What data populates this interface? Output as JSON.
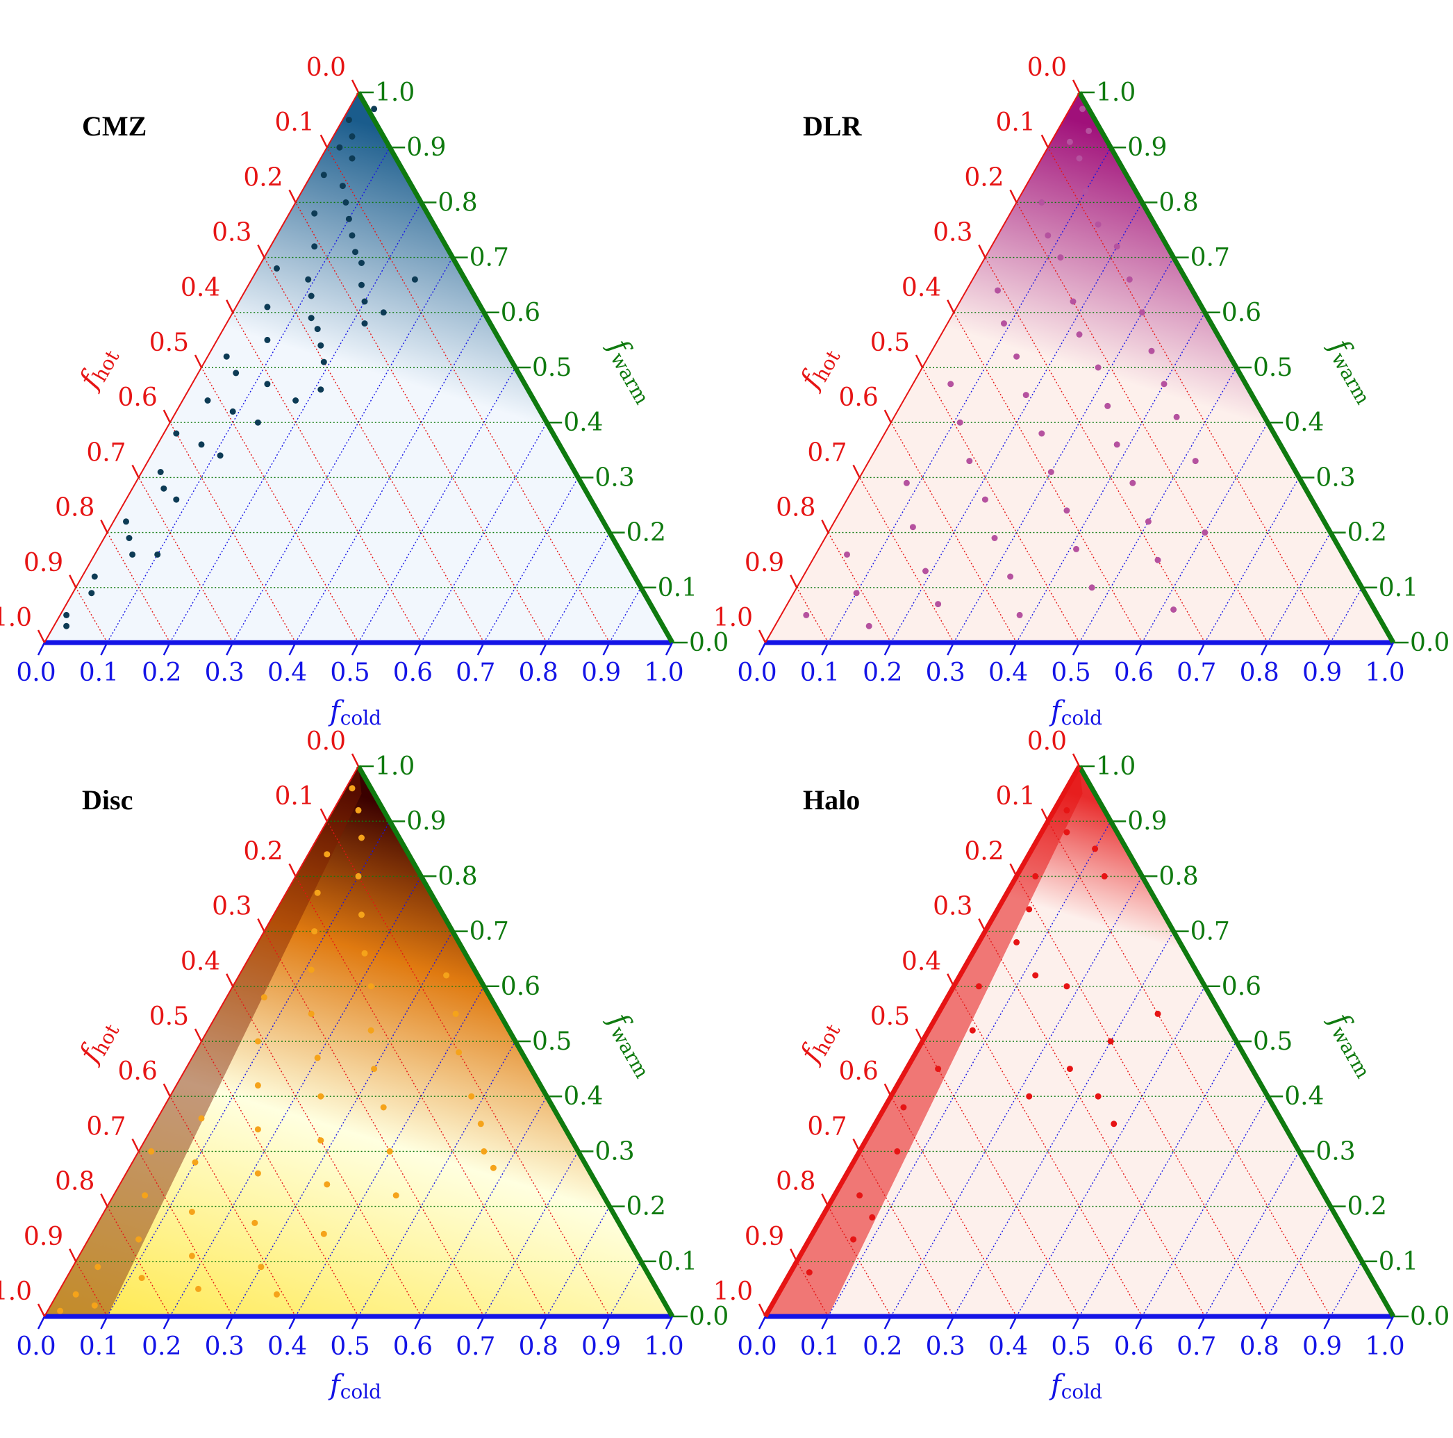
{
  "figure": {
    "ticks": [
      "0.0",
      "0.1",
      "0.2",
      "0.3",
      "0.4",
      "0.5",
      "0.6",
      "0.7",
      "0.8",
      "0.9",
      "1.0"
    ],
    "axis_colors": {
      "cold": "#1414e6",
      "warm": "#0f7a0f",
      "hot": "#e61414"
    },
    "axes": {
      "cold": {
        "symbol": "f",
        "subscript": "cold"
      },
      "warm": {
        "symbol": "f",
        "subscript": "warm"
      },
      "hot": {
        "symbol": "f",
        "subscript": "hot"
      }
    }
  },
  "chart_data": [
    {
      "type": "scatter",
      "title": "CMZ",
      "coordinates": "ternary (f_cold, f_warm, f_hot)",
      "density_colors": [
        "#f2f7fd",
        "#1a5c8c"
      ],
      "point_color": "#0d3b55",
      "density": "strongest near f_warm ≈ 0.9–1.0 and along the f_cold = 0 edge",
      "points": [
        [
          0.03,
          0.92
        ],
        [
          0.05,
          0.88
        ],
        [
          0.02,
          0.85
        ],
        [
          0.06,
          0.83
        ],
        [
          0.08,
          0.8
        ],
        [
          0.04,
          0.78
        ],
        [
          0.1,
          0.77
        ],
        [
          0.12,
          0.74
        ],
        [
          0.07,
          0.72
        ],
        [
          0.14,
          0.71
        ],
        [
          0.16,
          0.69
        ],
        [
          0.03,
          0.68
        ],
        [
          0.09,
          0.66
        ],
        [
          0.18,
          0.65
        ],
        [
          0.11,
          0.63
        ],
        [
          0.2,
          0.62
        ],
        [
          0.05,
          0.61
        ],
        [
          0.13,
          0.59
        ],
        [
          0.15,
          0.57
        ],
        [
          0.22,
          0.58
        ],
        [
          0.08,
          0.55
        ],
        [
          0.17,
          0.54
        ],
        [
          0.03,
          0.52
        ],
        [
          0.19,
          0.51
        ],
        [
          0.06,
          0.49
        ],
        [
          0.12,
          0.47
        ],
        [
          0.21,
          0.46
        ],
        [
          0.04,
          0.44
        ],
        [
          0.09,
          0.42
        ],
        [
          0.14,
          0.4
        ],
        [
          0.02,
          0.38
        ],
        [
          0.07,
          0.36
        ],
        [
          0.11,
          0.34
        ],
        [
          0.03,
          0.31
        ],
        [
          0.05,
          0.28
        ],
        [
          0.08,
          0.26
        ],
        [
          0.02,
          0.22
        ],
        [
          0.04,
          0.19
        ],
        [
          0.06,
          0.16
        ],
        [
          0.02,
          0.12
        ],
        [
          0.03,
          0.09
        ],
        [
          0.01,
          0.05
        ],
        [
          0.02,
          0.03
        ],
        [
          0.1,
          0.16
        ],
        [
          0.18,
          0.44
        ],
        [
          0.24,
          0.6
        ],
        [
          0.26,
          0.66
        ],
        [
          0.01,
          0.95
        ],
        [
          0.04,
          0.97
        ],
        [
          0.02,
          0.9
        ]
      ]
    },
    {
      "type": "scatter",
      "title": "DLR",
      "coordinates": "ternary (f_cold, f_warm, f_hot)",
      "density_colors": [
        "#fdf0ec",
        "#a0107a"
      ],
      "point_color": "#b5529f",
      "density": "strongest near f_warm ≈ 0.85–0.95, spread across the interior",
      "points": [
        [
          0.03,
          0.91
        ],
        [
          0.06,
          0.88
        ],
        [
          0.1,
          0.82
        ],
        [
          0.04,
          0.8
        ],
        [
          0.15,
          0.76
        ],
        [
          0.08,
          0.74
        ],
        [
          0.2,
          0.72
        ],
        [
          0.12,
          0.7
        ],
        [
          0.25,
          0.66
        ],
        [
          0.05,
          0.64
        ],
        [
          0.18,
          0.62
        ],
        [
          0.3,
          0.6
        ],
        [
          0.09,
          0.58
        ],
        [
          0.22,
          0.56
        ],
        [
          0.35,
          0.53
        ],
        [
          0.14,
          0.52
        ],
        [
          0.28,
          0.5
        ],
        [
          0.4,
          0.47
        ],
        [
          0.06,
          0.47
        ],
        [
          0.19,
          0.45
        ],
        [
          0.33,
          0.43
        ],
        [
          0.45,
          0.41
        ],
        [
          0.11,
          0.4
        ],
        [
          0.25,
          0.38
        ],
        [
          0.38,
          0.36
        ],
        [
          0.52,
          0.33
        ],
        [
          0.16,
          0.33
        ],
        [
          0.3,
          0.31
        ],
        [
          0.44,
          0.29
        ],
        [
          0.08,
          0.29
        ],
        [
          0.22,
          0.26
        ],
        [
          0.36,
          0.24
        ],
        [
          0.5,
          0.22
        ],
        [
          0.6,
          0.2
        ],
        [
          0.13,
          0.21
        ],
        [
          0.27,
          0.19
        ],
        [
          0.41,
          0.17
        ],
        [
          0.05,
          0.16
        ],
        [
          0.19,
          0.13
        ],
        [
          0.33,
          0.12
        ],
        [
          0.47,
          0.1
        ],
        [
          0.1,
          0.09
        ],
        [
          0.24,
          0.07
        ],
        [
          0.38,
          0.05
        ],
        [
          0.04,
          0.05
        ],
        [
          0.15,
          0.03
        ],
        [
          0.62,
          0.06
        ],
        [
          0.55,
          0.15
        ],
        [
          0.02,
          0.97
        ],
        [
          0.05,
          0.93
        ]
      ]
    },
    {
      "type": "scatter",
      "title": "Disc",
      "coordinates": "ternary (f_cold, f_warm, f_hot)",
      "density_colors": [
        "#ffffe0",
        "#ffe84a",
        "#e07a10",
        "#3a0000"
      ],
      "point_color": "#f5a31a",
      "density": "strongest near f_warm ≈ 0.9 and along the f_cold ≈ 0.05 edge for f_warm < 0.3",
      "points": [
        [
          0.04,
          0.92
        ],
        [
          0.07,
          0.87
        ],
        [
          0.03,
          0.84
        ],
        [
          0.1,
          0.8
        ],
        [
          0.05,
          0.77
        ],
        [
          0.14,
          0.73
        ],
        [
          0.08,
          0.7
        ],
        [
          0.18,
          0.66
        ],
        [
          0.11,
          0.63
        ],
        [
          0.22,
          0.6
        ],
        [
          0.06,
          0.58
        ],
        [
          0.15,
          0.55
        ],
        [
          0.26,
          0.52
        ],
        [
          0.09,
          0.5
        ],
        [
          0.2,
          0.47
        ],
        [
          0.3,
          0.45
        ],
        [
          0.13,
          0.42
        ],
        [
          0.24,
          0.4
        ],
        [
          0.35,
          0.38
        ],
        [
          0.07,
          0.36
        ],
        [
          0.17,
          0.34
        ],
        [
          0.28,
          0.32
        ],
        [
          0.4,
          0.3
        ],
        [
          0.1,
          0.28
        ],
        [
          0.21,
          0.26
        ],
        [
          0.33,
          0.24
        ],
        [
          0.45,
          0.22
        ],
        [
          0.05,
          0.22
        ],
        [
          0.14,
          0.19
        ],
        [
          0.25,
          0.17
        ],
        [
          0.37,
          0.15
        ],
        [
          0.08,
          0.14
        ],
        [
          0.18,
          0.11
        ],
        [
          0.3,
          0.09
        ],
        [
          0.04,
          0.09
        ],
        [
          0.12,
          0.07
        ],
        [
          0.22,
          0.05
        ],
        [
          0.03,
          0.04
        ],
        [
          0.07,
          0.02
        ],
        [
          0.02,
          0.01
        ],
        [
          0.48,
          0.4
        ],
        [
          0.52,
          0.35
        ],
        [
          0.55,
          0.3
        ],
        [
          0.42,
          0.48
        ],
        [
          0.38,
          0.55
        ],
        [
          0.33,
          0.62
        ],
        [
          0.58,
          0.27
        ],
        [
          0.35,
          0.04
        ],
        [
          0.01,
          0.96
        ],
        [
          0.02,
          0.3
        ]
      ]
    },
    {
      "type": "scatter",
      "title": "Halo",
      "coordinates": "ternary (f_cold, f_warm, f_hot)",
      "density_colors": [
        "#fdeeea",
        "#e61414",
        "#3a0000"
      ],
      "point_color": "#e61414",
      "density": "concentrated along the f_cold = 0 edge, darkest near f_warm ≈ 0.9",
      "points": [
        [
          0.02,
          0.92
        ],
        [
          0.04,
          0.88
        ],
        [
          0.03,
          0.8
        ],
        [
          0.05,
          0.74
        ],
        [
          0.06,
          0.68
        ],
        [
          0.04,
          0.6
        ],
        [
          0.07,
          0.52
        ],
        [
          0.05,
          0.45
        ],
        [
          0.03,
          0.38
        ],
        [
          0.06,
          0.3
        ],
        [
          0.04,
          0.22
        ],
        [
          0.07,
          0.14
        ],
        [
          0.03,
          0.08
        ],
        [
          0.1,
          0.85
        ],
        [
          0.14,
          0.8
        ],
        [
          0.12,
          0.62
        ],
        [
          0.3,
          0.5
        ],
        [
          0.26,
          0.45
        ],
        [
          0.22,
          0.4
        ],
        [
          0.33,
          0.4
        ],
        [
          0.35,
          0.55
        ],
        [
          0.38,
          0.35
        ],
        [
          0.18,
          0.6
        ],
        [
          0.08,
          0.18
        ]
      ]
    }
  ]
}
